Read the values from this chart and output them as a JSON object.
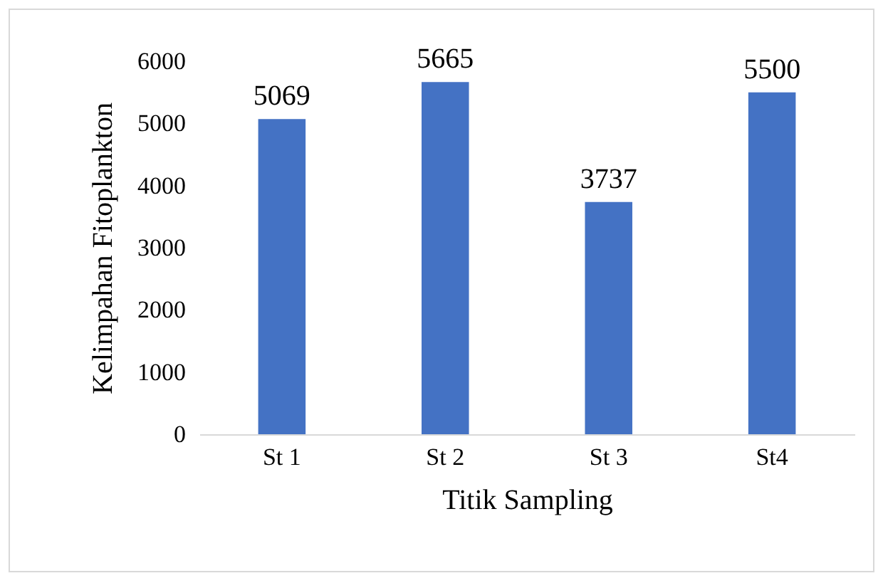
{
  "chart_data": {
    "type": "bar",
    "xlabel": "Titik Sampling",
    "ylabel": "Kelimpahan Fitoplankton",
    "categories": [
      "St 1",
      "St 2",
      "St 3",
      "St4"
    ],
    "values": [
      5069,
      5665,
      3737,
      5500
    ],
    "color": "#4472c4",
    "ylim": [
      0,
      6000
    ],
    "yticks": [
      0,
      1000,
      2000,
      3000,
      4000,
      5000,
      6000
    ],
    "grid": false,
    "data_labels": true
  }
}
